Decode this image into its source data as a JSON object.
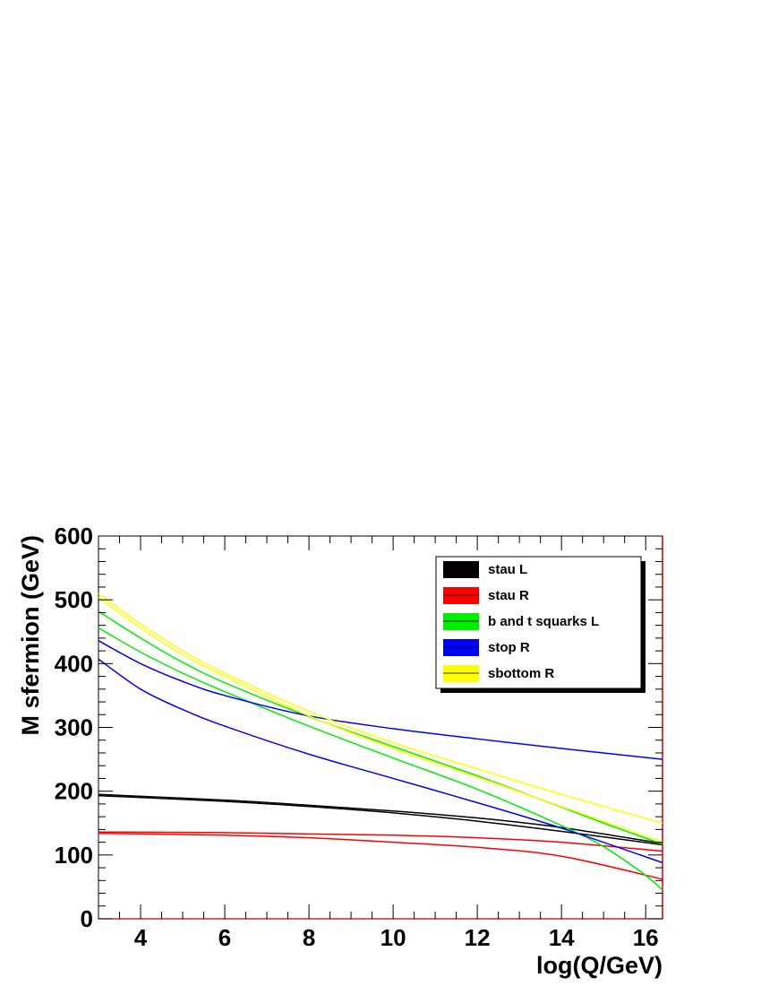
{
  "chart_data": {
    "type": "line",
    "xlabel": "log(Q/GeV)",
    "ylabel": "M sfermion (GeV)",
    "xlim": [
      3,
      16.4
    ],
    "ylim": [
      0,
      600
    ],
    "x_ticks": [
      4,
      6,
      8,
      10,
      12,
      14,
      16
    ],
    "x_tick_labels": [
      "4",
      "6",
      "8",
      "10",
      "12",
      "14",
      "16"
    ],
    "y_ticks": [
      0,
      100,
      200,
      300,
      400,
      500,
      600
    ],
    "y_tick_labels": [
      "0",
      "100",
      "200",
      "300",
      "400",
      "500",
      "600"
    ],
    "legend_position": "top-right",
    "legend": [
      {
        "label": "stau L",
        "color": "#000000"
      },
      {
        "label": "stau R",
        "color": "#ff0000"
      },
      {
        "label": "b and t squarks L",
        "color": "#00ee00"
      },
      {
        "label": "stop R",
        "color": "#0000ff"
      },
      {
        "label": "sbottom R",
        "color": "#ffff00"
      }
    ],
    "series": [
      {
        "group": "stau L",
        "color": "#000000",
        "x": [
          3,
          6,
          8,
          10,
          12,
          14,
          16.4
        ],
        "y": [
          193,
          184,
          176,
          166,
          153,
          137,
          116
        ]
      },
      {
        "group": "stau L",
        "color": "#000000",
        "x": [
          3,
          6,
          8,
          10,
          12,
          14,
          16.4
        ],
        "y": [
          195,
          186,
          178,
          169,
          158,
          143,
          118
        ]
      },
      {
        "group": "stau R",
        "color": "#ff0000",
        "x": [
          3,
          6,
          8,
          10,
          12,
          14,
          16.4
        ],
        "y": [
          134,
          131,
          127,
          120,
          112,
          98,
          62
        ]
      },
      {
        "group": "stau R",
        "color": "#ff0000",
        "x": [
          3,
          6,
          8,
          10,
          12,
          14,
          16.4
        ],
        "y": [
          136,
          135,
          133,
          131,
          127,
          120,
          106
        ]
      },
      {
        "group": "b and t squarks L",
        "color": "#00ee00",
        "x": [
          3,
          4,
          5,
          6,
          8,
          10,
          12,
          14,
          15,
          16.4
        ],
        "y": [
          482,
          440,
          402,
          370,
          317,
          270,
          224,
          175,
          150,
          117
        ]
      },
      {
        "group": "b and t squarks L",
        "color": "#00ee00",
        "x": [
          3,
          4,
          5,
          6,
          8,
          10,
          12,
          14,
          15,
          16,
          16.4
        ],
        "y": [
          456,
          418,
          385,
          356,
          302,
          252,
          203,
          146,
          113,
          68,
          45
        ]
      },
      {
        "group": "stop R",
        "color": "#0000ff",
        "x": [
          3,
          4,
          5,
          6,
          8,
          10,
          12,
          14,
          16.4
        ],
        "y": [
          436,
          400,
          372,
          350,
          318,
          298,
          282,
          267,
          250
        ]
      },
      {
        "group": "stop R",
        "color": "#0000ff",
        "x": [
          3,
          4,
          5,
          6,
          8,
          10,
          12,
          14,
          16.4
        ],
        "y": [
          407,
          360,
          328,
          302,
          258,
          220,
          182,
          142,
          88
        ]
      },
      {
        "group": "sbottom R",
        "color": "#ffff00",
        "x": [
          3,
          4,
          5,
          6,
          8,
          10,
          12,
          14,
          16.4
        ],
        "y": [
          510,
          462,
          420,
          385,
          325,
          276,
          235,
          195,
          150
        ]
      },
      {
        "group": "sbottom R",
        "color": "#ffff00",
        "x": [
          3,
          4,
          5,
          6,
          8,
          10,
          12,
          14,
          16.4
        ],
        "y": [
          504,
          456,
          414,
          380,
          318,
          267,
          222,
          176,
          120
        ]
      }
    ]
  }
}
